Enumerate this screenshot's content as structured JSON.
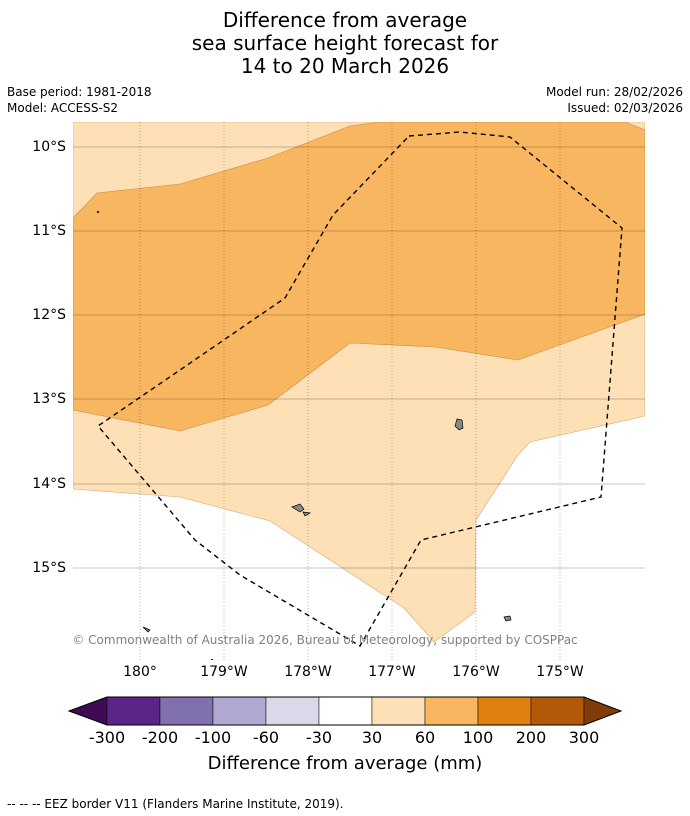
{
  "title": {
    "line1": "Difference from average",
    "line2": "sea surface height forecast for",
    "line3": "14 to 20 March 2026"
  },
  "meta": {
    "base_period": "Base period: 1981-2018",
    "model": "Model: ACCESS-S2",
    "model_run": "Model run: 28/02/2026",
    "issued": "Issued: 02/03/2026"
  },
  "map": {
    "lat_labels": [
      "10°S",
      "11°S",
      "12°S",
      "13°S",
      "14°S",
      "15°S"
    ],
    "lon_labels": [
      "180°",
      "179°W",
      "178°W",
      "177°W",
      "176°W",
      "175°W"
    ],
    "colors": {
      "band_30_60": "#fde0b6",
      "band_60_100": "#f9b660",
      "coast": "#888888",
      "eez": "#000000",
      "grid": "#000000"
    },
    "copyright": "© Commonwealth of Australia 2026, Bureau of Meteorology, supported by COSPPac"
  },
  "colorbar": {
    "labels": [
      "-300",
      "-200",
      "-100",
      "-60",
      "-30",
      "30",
      "60",
      "100",
      "200",
      "300"
    ],
    "colors": [
      "#3f0a56",
      "#5a2489",
      "#8070ad",
      "#b2a9d2",
      "#d9d9ea",
      "#ffffff",
      "#fde0b6",
      "#f9b660",
      "#e0800f",
      "#b35709",
      "#7f3b08"
    ],
    "title": "Difference from average (mm)"
  },
  "footer": {
    "legend": "--  --  -- EEZ border V11 (Flanders Marine Institute, 2019)."
  }
}
